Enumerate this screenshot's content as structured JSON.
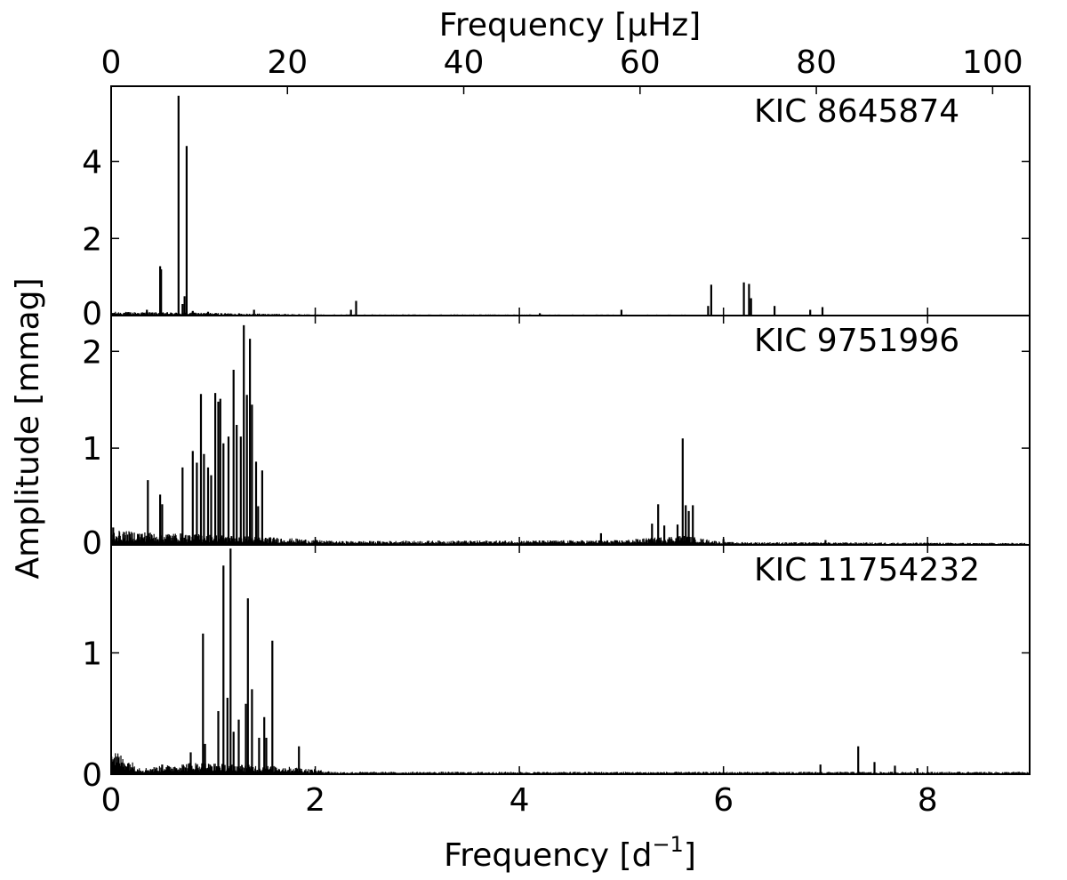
{
  "chart_data": {
    "type": "line",
    "top_axis": {
      "label": "Frequency [μHz]",
      "ticks": [
        "0",
        "20",
        "40",
        "60",
        "80",
        "100"
      ],
      "tick_values": [
        0,
        20,
        40,
        60,
        80,
        100
      ],
      "lim": [
        0,
        104.2
      ]
    },
    "bottom_axis": {
      "label_prefix": "Frequency [d",
      "label_sup": "−1",
      "label_suffix": "]",
      "ticks": [
        "0",
        "2",
        "4",
        "6",
        "8"
      ],
      "tick_values": [
        0,
        2,
        4,
        6,
        8
      ],
      "lim": [
        0,
        9
      ]
    },
    "ylabel": "Amplitude [mmag]",
    "grid": false,
    "panels": [
      {
        "name": "KIC 8645874",
        "ylim": [
          0,
          5.95
        ],
        "yticks": [
          0,
          2,
          4
        ],
        "ytick_labels": [
          "0",
          "2",
          "4"
        ],
        "baseline_noise": [
          [
            0,
            0.1
          ],
          [
            0.8,
            0.08
          ],
          [
            2.0,
            0.03
          ],
          [
            9.0,
            0.02
          ]
        ],
        "peaks": [
          [
            0.48,
            1.28
          ],
          [
            0.49,
            1.2
          ],
          [
            0.66,
            5.7
          ],
          [
            0.72,
            0.5
          ],
          [
            0.74,
            4.4
          ],
          [
            0.7,
            0.3
          ],
          [
            0.35,
            0.15
          ],
          [
            0.8,
            0.12
          ],
          [
            0.95,
            0.1
          ],
          [
            1.4,
            0.15
          ],
          [
            2.4,
            0.38
          ],
          [
            2.35,
            0.15
          ],
          [
            4.2,
            0.06
          ],
          [
            5.0,
            0.15
          ],
          [
            5.85,
            0.25
          ],
          [
            5.88,
            0.8
          ],
          [
            6.2,
            0.86
          ],
          [
            6.25,
            0.82
          ],
          [
            6.27,
            0.45
          ],
          [
            6.5,
            0.25
          ],
          [
            6.85,
            0.15
          ],
          [
            6.97,
            0.22
          ]
        ]
      },
      {
        "name": "KIC 9751996",
        "ylim": [
          0,
          2.37
        ],
        "yticks": [
          0,
          1,
          2
        ],
        "ytick_labels": [
          "0",
          "1",
          "2"
        ],
        "baseline_noise": [
          [
            0,
            0.15
          ],
          [
            0.7,
            0.12
          ],
          [
            1.6,
            0.08
          ],
          [
            2.2,
            0.04
          ],
          [
            5.0,
            0.05
          ],
          [
            5.6,
            0.1
          ],
          [
            6.0,
            0.03
          ],
          [
            9.0,
            0.02
          ]
        ],
        "peaks": [
          [
            0.02,
            0.18
          ],
          [
            0.27,
            0.1
          ],
          [
            0.36,
            0.67
          ],
          [
            0.48,
            0.52
          ],
          [
            0.5,
            0.42
          ],
          [
            0.7,
            0.8
          ],
          [
            0.8,
            0.97
          ],
          [
            0.84,
            0.85
          ],
          [
            0.88,
            1.56
          ],
          [
            0.91,
            0.94
          ],
          [
            0.95,
            0.8
          ],
          [
            0.98,
            0.72
          ],
          [
            1.02,
            1.57
          ],
          [
            1.05,
            1.48
          ],
          [
            1.07,
            1.51
          ],
          [
            1.1,
            1.05
          ],
          [
            1.15,
            1.12
          ],
          [
            1.2,
            1.81
          ],
          [
            1.23,
            1.24
          ],
          [
            1.27,
            1.12
          ],
          [
            1.3,
            2.27
          ],
          [
            1.33,
            1.55
          ],
          [
            1.36,
            2.13
          ],
          [
            1.38,
            1.45
          ],
          [
            1.42,
            0.86
          ],
          [
            1.48,
            0.77
          ],
          [
            1.44,
            0.4
          ],
          [
            4.8,
            0.12
          ],
          [
            5.3,
            0.22
          ],
          [
            5.36,
            0.42
          ],
          [
            5.42,
            0.2
          ],
          [
            5.55,
            0.21
          ],
          [
            5.6,
            1.1
          ],
          [
            5.63,
            0.41
          ],
          [
            5.66,
            0.35
          ],
          [
            5.7,
            0.41
          ],
          [
            6.0,
            0.06
          ],
          [
            7.0,
            0.05
          ]
        ]
      },
      {
        "name": "KIC 11754232",
        "ylim": [
          0,
          1.89
        ],
        "yticks": [
          0,
          1
        ],
        "ytick_labels": [
          "0",
          "1"
        ],
        "baseline_noise": [
          [
            0,
            0.22
          ],
          [
            0.3,
            0.05
          ],
          [
            0.8,
            0.1
          ],
          [
            1.8,
            0.06
          ],
          [
            2.2,
            0.02
          ],
          [
            9.0,
            0.02
          ]
        ],
        "peaks": [
          [
            0.5,
            0.08
          ],
          [
            0.78,
            0.18
          ],
          [
            0.9,
            1.16
          ],
          [
            0.92,
            0.25
          ],
          [
            1.05,
            0.52
          ],
          [
            1.1,
            1.72
          ],
          [
            1.14,
            0.63
          ],
          [
            1.17,
            1.86
          ],
          [
            1.2,
            0.35
          ],
          [
            1.25,
            0.45
          ],
          [
            1.32,
            0.58
          ],
          [
            1.34,
            1.45
          ],
          [
            1.38,
            0.7
          ],
          [
            1.45,
            0.3
          ],
          [
            1.5,
            0.47
          ],
          [
            1.52,
            0.3
          ],
          [
            1.58,
            1.1
          ],
          [
            1.84,
            0.23
          ],
          [
            6.95,
            0.08
          ],
          [
            7.32,
            0.23
          ],
          [
            7.48,
            0.1
          ],
          [
            7.68,
            0.07
          ],
          [
            7.9,
            0.05
          ]
        ]
      }
    ]
  }
}
